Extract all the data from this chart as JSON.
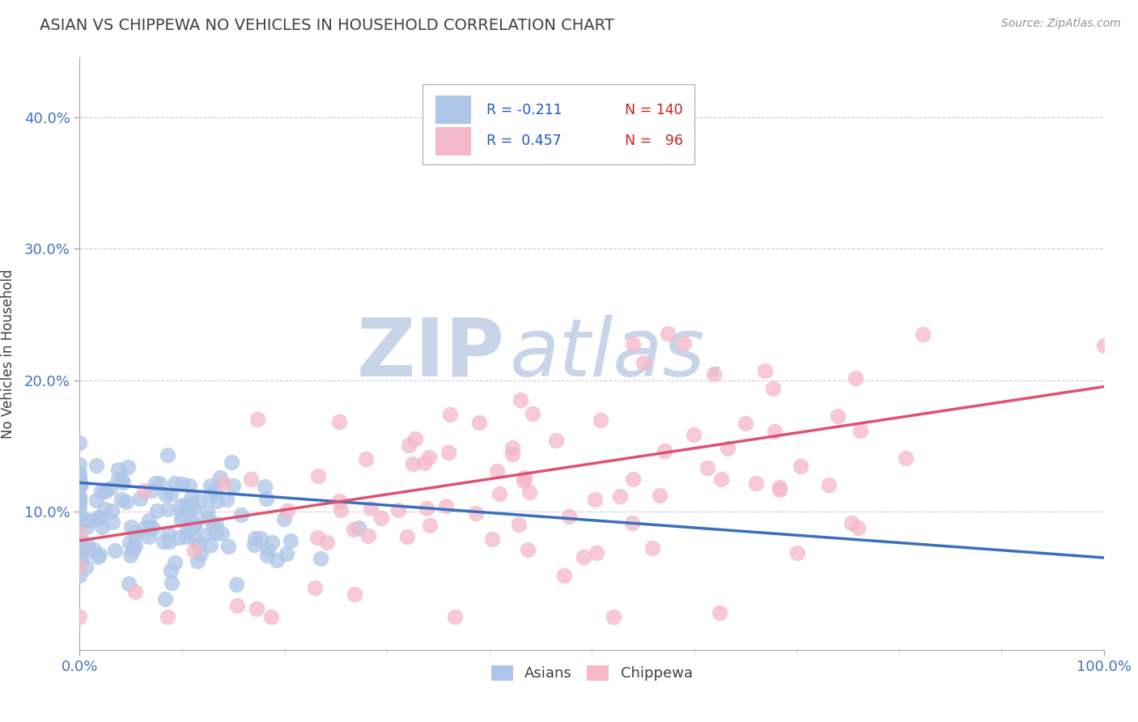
{
  "title": "ASIAN VS CHIPPEWA NO VEHICLES IN HOUSEHOLD CORRELATION CHART",
  "source": "Source: ZipAtlas.com",
  "ylabel": "No Vehicles in Household",
  "xlabel_ticks": [
    "0.0%",
    "100.0%"
  ],
  "ytick_labels": [
    "10.0%",
    "20.0%",
    "30.0%",
    "40.0%"
  ],
  "ytick_values": [
    0.1,
    0.2,
    0.3,
    0.4
  ],
  "xlim": [
    0.0,
    1.0
  ],
  "ylim": [
    -0.005,
    0.445
  ],
  "asian_R": -0.211,
  "asian_N": 140,
  "chippewa_R": 0.457,
  "chippewa_N": 96,
  "asian_color": "#aec6e8",
  "chippewa_color": "#f4b8c8",
  "asian_line_color": "#3a6fbd",
  "chippewa_line_color": "#e05070",
  "legend_R_color": "#2255cc",
  "legend_N_color": "#cc2222",
  "title_color": "#404040",
  "source_color": "#909090",
  "axis_label_color": "#404040",
  "tick_color": "#4472c4",
  "grid_color": "#cccccc",
  "watermark_color_zip": "#c8d4e8",
  "watermark_color_atlas": "#c8d4e8",
  "background_color": "#ffffff",
  "asian_line_x0": 0.0,
  "asian_line_x1": 1.0,
  "asian_line_y0": 0.122,
  "asian_line_y1": 0.065,
  "chippewa_line_x0": 0.0,
  "chippewa_line_x1": 1.0,
  "chippewa_line_y0": 0.078,
  "chippewa_line_y1": 0.195
}
